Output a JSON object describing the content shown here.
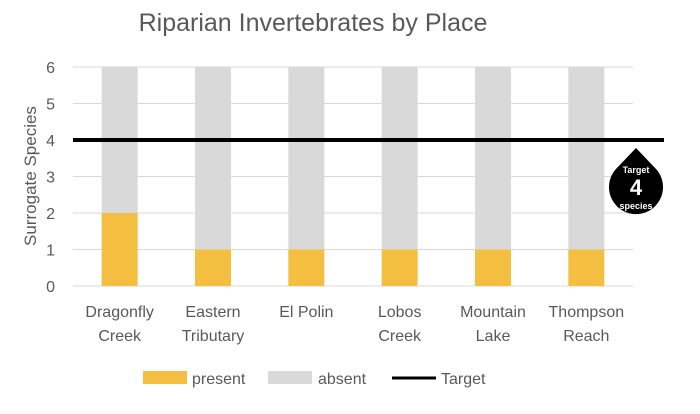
{
  "chart_data": {
    "type": "bar",
    "stacked": true,
    "title": "Riparian Invertebrates by Place",
    "ylabel": "Surrogate Species",
    "xlabel": "",
    "ylim": [
      0,
      6
    ],
    "yticks": [
      "0",
      "1",
      "2",
      "3",
      "4",
      "5",
      "6"
    ],
    "grid": true,
    "legend_position": "bottom",
    "categories": [
      [
        "Dragonfly",
        "Creek"
      ],
      [
        "Eastern",
        "Tributary"
      ],
      [
        "El Polin"
      ],
      [
        "Lobos",
        "Creek"
      ],
      [
        "Mountain",
        "Lake"
      ],
      [
        "Thompson",
        "Reach"
      ]
    ],
    "series": [
      {
        "name": "present",
        "values": [
          2,
          1,
          1,
          1,
          1,
          1
        ],
        "color": "#F4BE41"
      },
      {
        "name": "absent",
        "values": [
          4,
          5,
          5,
          5,
          5,
          5
        ],
        "color": "#D9D9D9"
      }
    ],
    "target": {
      "name": "Target",
      "value": 4,
      "color": "#000000"
    },
    "badge": {
      "top_text": "Target",
      "value_text": "4",
      "bottom_text": "species"
    }
  }
}
